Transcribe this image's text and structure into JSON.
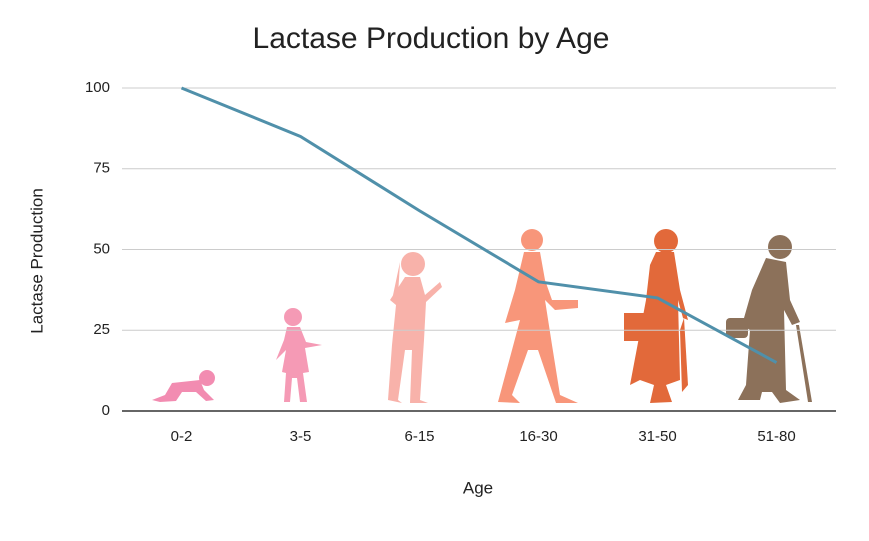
{
  "chart_data": {
    "type": "line",
    "title": "Lactase Production by Age",
    "x_label": "Age",
    "y_label": "Lactase Production",
    "categories": [
      "0-2",
      "3-5",
      "6-15",
      "16-30",
      "31-50",
      "51-80"
    ],
    "values": [
      100,
      85,
      62,
      40,
      35,
      15
    ],
    "color": "#5090aa",
    "ylim": [
      0,
      100
    ],
    "yticks": [
      0,
      25,
      50,
      75,
      100
    ],
    "grid": true
  }
}
